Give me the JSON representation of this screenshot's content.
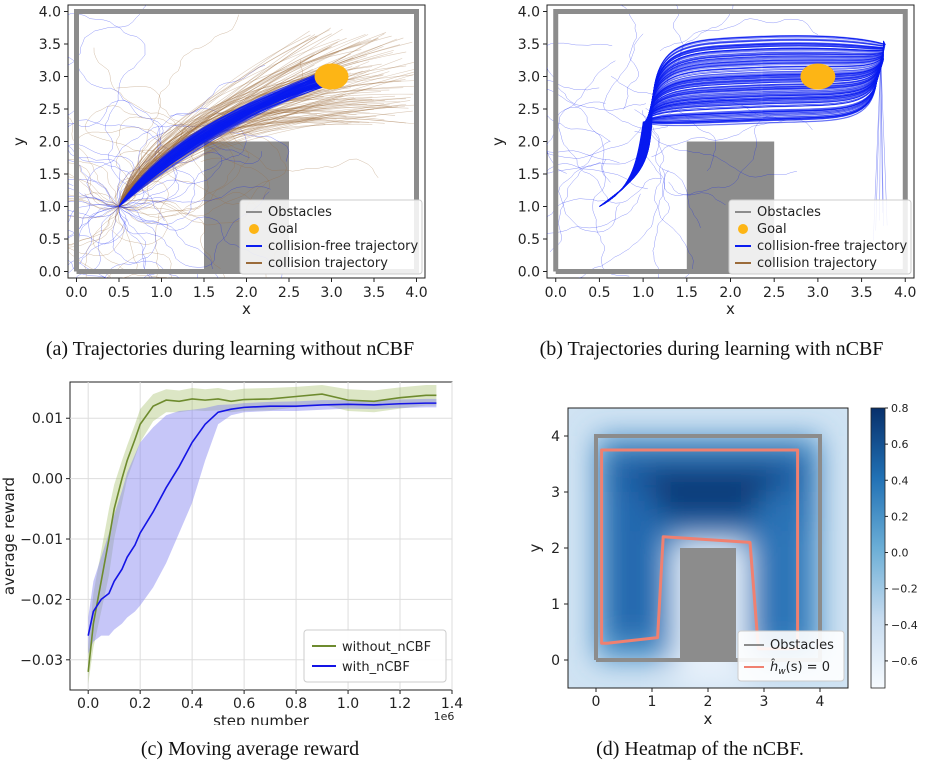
{
  "captions": {
    "a": "(a) Trajectories during learning without nCBF",
    "b": "(b) Trajectories during learning with nCBF",
    "c": "(c) Moving average reward",
    "d": "(d) Heatmap of the nCBF."
  },
  "colors": {
    "wall": "#8c8c8c",
    "goal": "#fdb515",
    "free": "#0a1cf0",
    "collision": "#9b6b3a",
    "without_ncbf": "#6e8b2e",
    "with_ncbf": "#1414e6",
    "contour": "#f08070"
  },
  "chart_data": [
    {
      "id": "a",
      "type": "line",
      "title": "",
      "xlabel": "x",
      "ylabel": "y",
      "xlim": [
        -0.1,
        4.1
      ],
      "ylim": [
        -0.1,
        4.1
      ],
      "xticks": [
        "0.0",
        "0.5",
        "1.0",
        "1.5",
        "2.0",
        "2.5",
        "3.0",
        "3.5",
        "4.0"
      ],
      "yticks": [
        "0.0",
        "0.5",
        "1.0",
        "1.5",
        "2.0",
        "2.5",
        "3.0",
        "3.5",
        "4.0"
      ],
      "walls": [
        [
          0,
          0
        ],
        [
          4,
          0
        ],
        [
          4,
          4
        ],
        [
          0,
          4
        ],
        [
          0,
          0
        ]
      ],
      "obstacle_rect": {
        "x0": 1.5,
        "x1": 2.5,
        "y0": 0,
        "y1": 2.0
      },
      "goal": {
        "x": 3.0,
        "y": 3.0,
        "r": 0.2
      },
      "start": {
        "x": 0.5,
        "y": 1.0
      },
      "bundle_end": {
        "x": 3.0,
        "y": 3.0
      },
      "legend": [
        "Obstacles",
        "Goal",
        "collision-free trajectory",
        "collision trajectory"
      ],
      "legend_position": "lower-right"
    },
    {
      "id": "b",
      "type": "line",
      "title": "",
      "xlabel": "x",
      "ylabel": "y",
      "xlim": [
        -0.1,
        4.1
      ],
      "ylim": [
        -0.1,
        4.1
      ],
      "xticks": [
        "0.0",
        "0.5",
        "1.0",
        "1.5",
        "2.0",
        "2.5",
        "3.0",
        "3.5",
        "4.0"
      ],
      "yticks": [
        "0.0",
        "0.5",
        "1.0",
        "1.5",
        "2.0",
        "2.5",
        "3.0",
        "3.5",
        "4.0"
      ],
      "walls": [
        [
          0,
          0
        ],
        [
          4,
          0
        ],
        [
          4,
          4
        ],
        [
          0,
          4
        ],
        [
          0,
          0
        ]
      ],
      "obstacle_rect": {
        "x0": 1.5,
        "x1": 2.5,
        "y0": 0,
        "y1": 2.0
      },
      "goal": {
        "x": 3.0,
        "y": 3.0,
        "r": 0.2
      },
      "start": {
        "x": 0.5,
        "y": 1.0
      },
      "legend": [
        "Obstacles",
        "Goal",
        "collision-free trajectory",
        "collision trajectory"
      ],
      "legend_position": "lower-right"
    },
    {
      "id": "c",
      "type": "line",
      "title": "",
      "xlabel": "step number",
      "ylabel": "average reward",
      "x_multiplier": "1e6",
      "xlim": [
        -0.07,
        1.4
      ],
      "ylim": [
        -0.035,
        0.016
      ],
      "xticks": [
        "0.0",
        "0.2",
        "0.4",
        "0.6",
        "0.8",
        "1.0",
        "1.2",
        "1.4"
      ],
      "yticks": [
        "−0.03",
        "−0.02",
        "−0.01",
        "0.00",
        "0.01"
      ],
      "grid": true,
      "x": [
        0.0,
        0.02,
        0.05,
        0.08,
        0.1,
        0.13,
        0.15,
        0.18,
        0.2,
        0.25,
        0.3,
        0.35,
        0.4,
        0.45,
        0.5,
        0.55,
        0.6,
        0.7,
        0.8,
        0.9,
        1.0,
        1.1,
        1.2,
        1.3,
        1.34
      ],
      "series": [
        {
          "name": "without_nCBF",
          "values": [
            -0.032,
            -0.024,
            -0.017,
            -0.01,
            -0.005,
            0.0,
            0.003,
            0.0065,
            0.009,
            0.012,
            0.013,
            0.0128,
            0.0132,
            0.013,
            0.0132,
            0.0128,
            0.0131,
            0.0132,
            0.0136,
            0.014,
            0.013,
            0.0128,
            0.0134,
            0.0138,
            0.0138
          ],
          "upper": [
            -0.028,
            -0.019,
            -0.012,
            -0.005,
            -0.001,
            0.003,
            0.0055,
            0.009,
            0.0115,
            0.014,
            0.0148,
            0.0146,
            0.015,
            0.0148,
            0.015,
            0.0146,
            0.0149,
            0.015,
            0.0152,
            0.0155,
            0.0148,
            0.0146,
            0.0151,
            0.0155,
            0.0155
          ],
          "lower": [
            -0.034,
            -0.028,
            -0.022,
            -0.016,
            -0.01,
            -0.004,
            0.0,
            0.0035,
            0.006,
            0.0095,
            0.011,
            0.011,
            0.0113,
            0.0112,
            0.0113,
            0.011,
            0.0112,
            0.0113,
            0.0118,
            0.0123,
            0.0112,
            0.011,
            0.0116,
            0.0121,
            0.0121
          ]
        },
        {
          "name": "with_nCBF",
          "values": [
            -0.026,
            -0.022,
            -0.02,
            -0.019,
            -0.017,
            -0.015,
            -0.013,
            -0.011,
            -0.009,
            -0.0055,
            -0.0015,
            0.002,
            0.006,
            0.009,
            0.011,
            0.0115,
            0.0118,
            0.012,
            0.012,
            0.0122,
            0.0123,
            0.0122,
            0.0124,
            0.0125,
            0.0125
          ],
          "upper": [
            -0.023,
            -0.017,
            -0.013,
            -0.009,
            -0.006,
            -0.002,
            0.001,
            0.004,
            0.006,
            0.0085,
            0.0105,
            0.0112,
            0.0114,
            0.0117,
            0.0122,
            0.0123,
            0.0125,
            0.0127,
            0.0128,
            0.013,
            0.013,
            0.0129,
            0.0131,
            0.0132,
            0.0132
          ],
          "lower": [
            -0.029,
            -0.027,
            -0.026,
            -0.026,
            -0.025,
            -0.024,
            -0.023,
            -0.022,
            -0.021,
            -0.018,
            -0.014,
            -0.009,
            -0.004,
            0.003,
            0.009,
            0.0105,
            0.011,
            0.0112,
            0.0112,
            0.0114,
            0.0116,
            0.0115,
            0.0117,
            0.0118,
            0.0118
          ]
        }
      ],
      "legend_position": "lower-right"
    },
    {
      "id": "d",
      "type": "heatmap",
      "title": "",
      "xlabel": "x",
      "ylabel": "y",
      "xlim": [
        -0.5,
        4.5
      ],
      "ylim": [
        -0.5,
        4.5
      ],
      "xticks": [
        "0",
        "1",
        "2",
        "3",
        "4"
      ],
      "yticks": [
        "0",
        "1",
        "2",
        "3",
        "4"
      ],
      "walls": [
        [
          0,
          0
        ],
        [
          4,
          0
        ],
        [
          4,
          4
        ],
        [
          0,
          4
        ],
        [
          0,
          0
        ]
      ],
      "obstacle_rect": {
        "x0": 1.5,
        "x1": 2.5,
        "y0": 0,
        "y1": 2.0
      },
      "contour_path": [
        [
          0.1,
          0.3
        ],
        [
          0.1,
          3.75
        ],
        [
          3.6,
          3.75
        ],
        [
          3.6,
          0.2
        ],
        [
          2.9,
          0.2
        ],
        [
          2.75,
          2.1
        ],
        [
          1.2,
          2.2
        ],
        [
          1.1,
          0.4
        ],
        [
          0.2,
          0.3
        ]
      ],
      "colorbar": {
        "min": -0.75,
        "max": 0.8,
        "ticks": [
          "0.8",
          "0.6",
          "0.4",
          "0.2",
          "0.0",
          "−0.2",
          "−0.4",
          "−0.6"
        ]
      },
      "legend": [
        "Obstacles",
        "ĥ"
      ],
      "legend_position": "lower-right"
    }
  ]
}
